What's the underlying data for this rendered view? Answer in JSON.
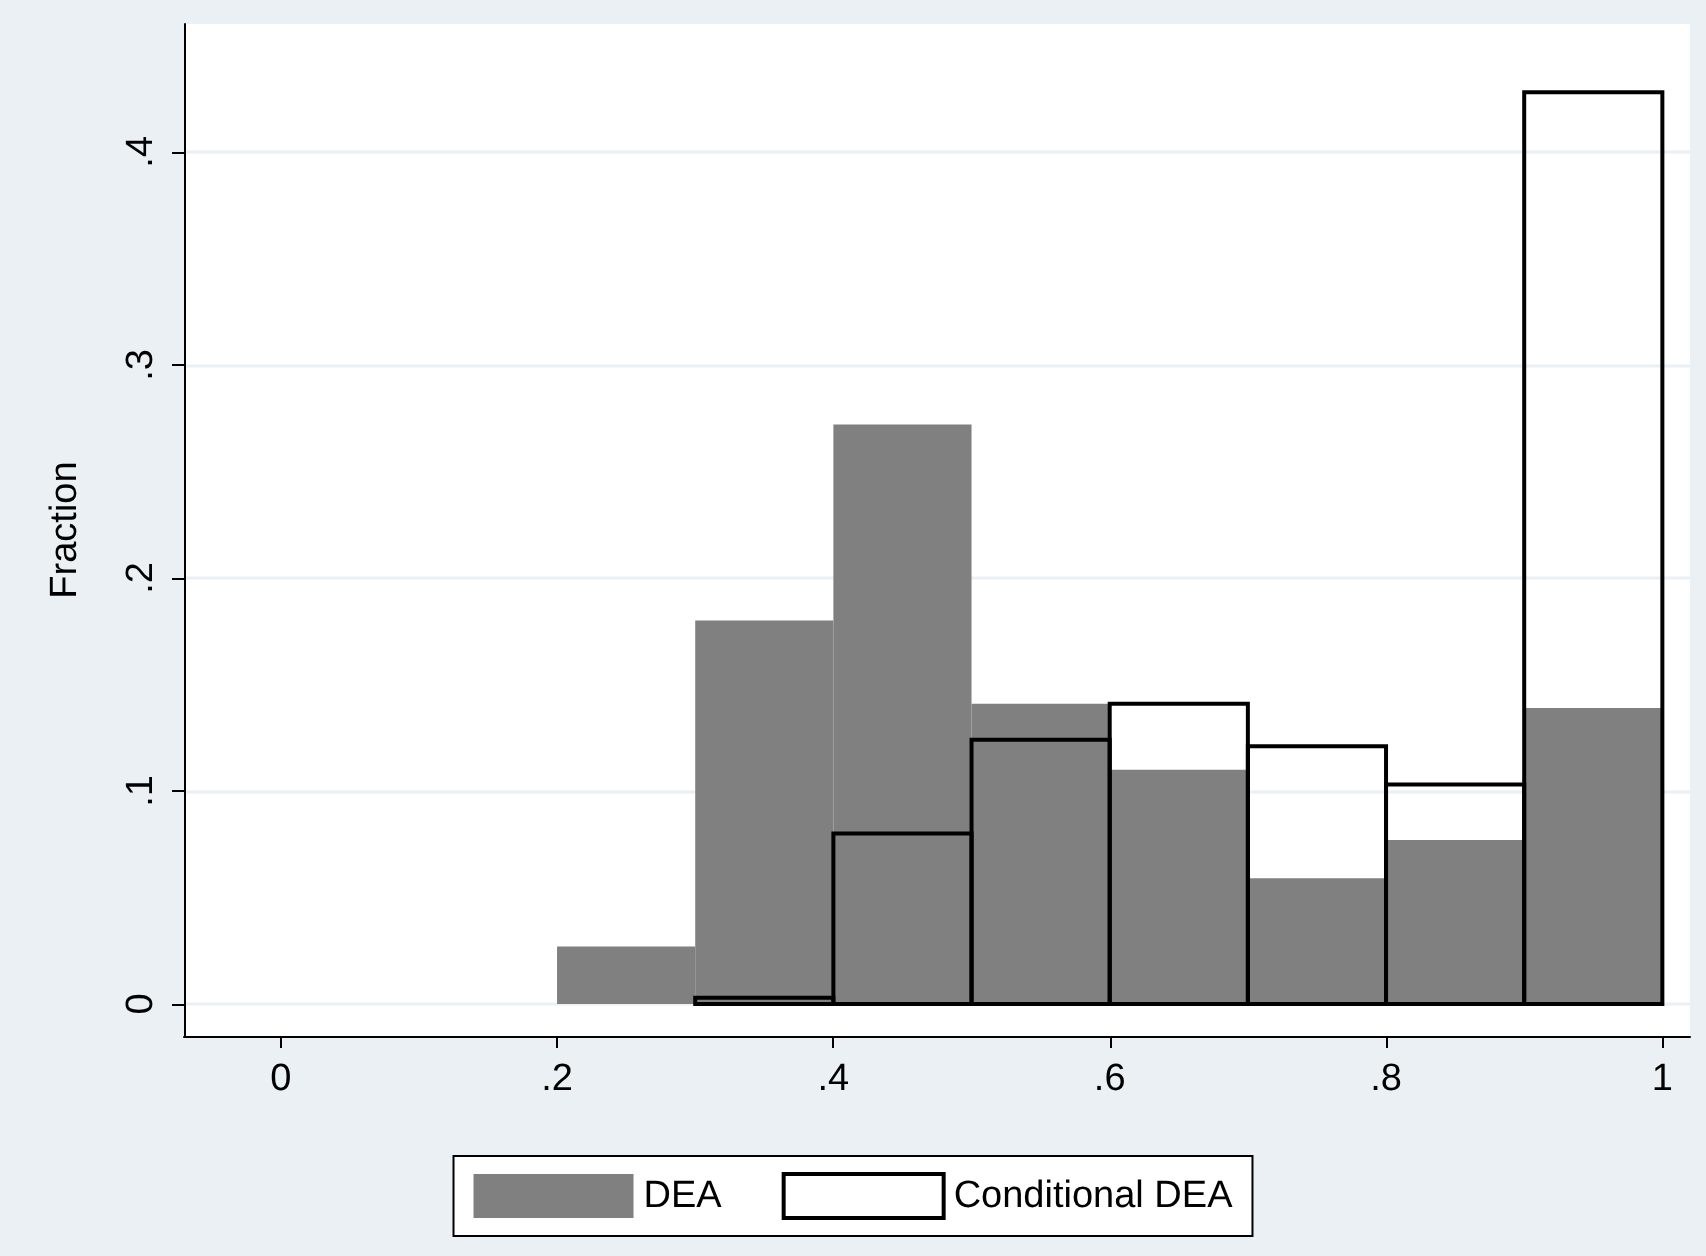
{
  "chart_data": {
    "type": "histogram",
    "ylabel": "Fraction",
    "bins": [
      0.2,
      0.3,
      0.4,
      0.5,
      0.6,
      0.7,
      0.8,
      0.9,
      1.0
    ],
    "series": [
      {
        "name": "DEA",
        "color": "#808080",
        "values": [
          0.027,
          0.18,
          0.272,
          0.141,
          0.11,
          0.059,
          0.077,
          0.139
        ]
      },
      {
        "name": "Conditional DEA",
        "color": "#000000",
        "values": [
          null,
          0.003,
          0.08,
          0.124,
          0.141,
          0.121,
          0.103,
          0.428
        ]
      }
    ],
    "xlim": [
      -0.07,
      1.02
    ],
    "xticks": [
      0,
      {
        "value": 0.2,
        "label": ".2"
      },
      {
        "value": 0.4,
        "label": ".4"
      },
      {
        "value": 0.6,
        "label": ".6"
      },
      {
        "value": 0.8,
        "label": ".8"
      },
      1
    ],
    "ylim": [
      -0.015,
      0.46
    ],
    "yticks": [
      0,
      {
        "value": 0.1,
        "label": ".1"
      },
      {
        "value": 0.2,
        "label": ".2"
      },
      {
        "value": 0.3,
        "label": ".3"
      },
      {
        "value": 0.4,
        "label": ".4"
      }
    ],
    "grid": "y",
    "legend": "bottom"
  }
}
